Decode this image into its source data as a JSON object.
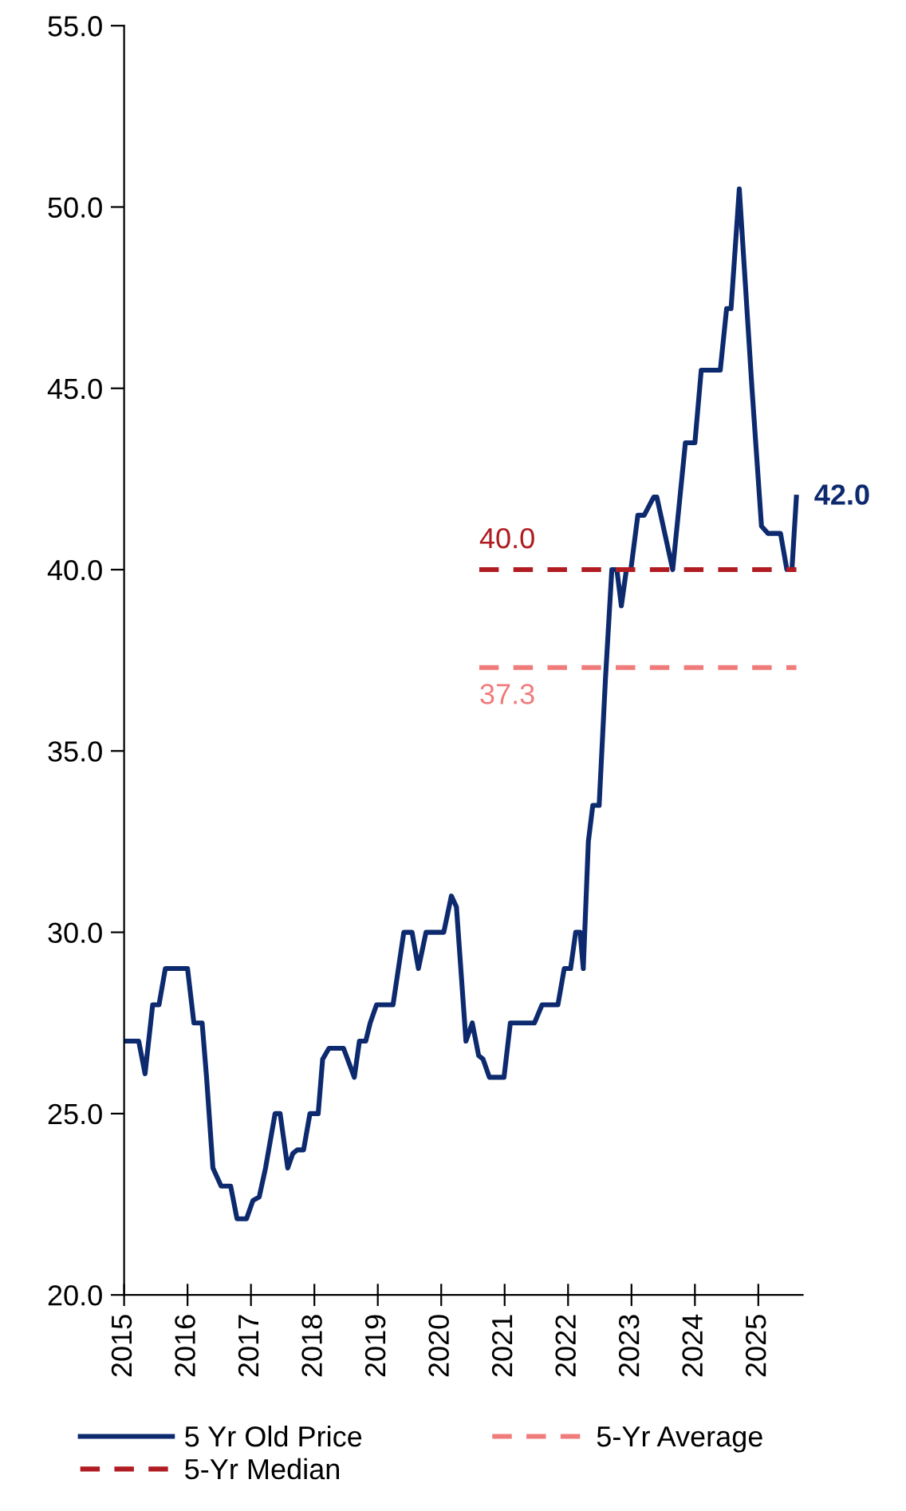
{
  "chart_data": {
    "type": "line",
    "xlim": [
      2015,
      2025.7
    ],
    "xticks": [
      2015,
      2016,
      2017,
      2018,
      2019,
      2020,
      2021,
      2022,
      2023,
      2024,
      2025
    ],
    "ylim": [
      20,
      55
    ],
    "yticks": [
      {
        "value": 20,
        "label": "20.0"
      },
      {
        "value": 25,
        "label": "25.0"
      },
      {
        "value": 30,
        "label": "30.0"
      },
      {
        "value": 35,
        "label": "35.0"
      },
      {
        "value": 40,
        "label": "40.0"
      },
      {
        "value": 45,
        "label": "45.0"
      },
      {
        "value": 50,
        "label": "50.0"
      },
      {
        "value": 55,
        "label": "55.0"
      }
    ],
    "grid": false,
    "legend": "bottom",
    "marker": "none",
    "series": [
      {
        "name": "5 Yr Old Price",
        "color": "#0d2a6e",
        "line_style": "solid",
        "x": [
          2015.0,
          2015.23,
          2015.33,
          2015.45,
          2015.55,
          2015.65,
          2016.0,
          2016.1,
          2016.23,
          2016.3,
          2016.4,
          2016.53,
          2016.68,
          2016.78,
          2016.93,
          2017.03,
          2017.13,
          2017.23,
          2017.38,
          2017.46,
          2017.58,
          2017.66,
          2017.73,
          2017.83,
          2017.93,
          2018.06,
          2018.13,
          2018.23,
          2018.46,
          2018.63,
          2018.71,
          2018.81,
          2018.88,
          2018.98,
          2019.24,
          2019.41,
          2019.54,
          2019.64,
          2019.76,
          2020.04,
          2020.16,
          2020.24,
          2020.39,
          2020.49,
          2020.59,
          2020.66,
          2020.76,
          2020.99,
          2021.09,
          2021.47,
          2021.59,
          2021.84,
          2021.94,
          2022.04,
          2022.12,
          2022.19,
          2022.24,
          2022.32,
          2022.39,
          2022.49,
          2022.59,
          2022.69,
          2022.77,
          2022.84,
          2022.92,
          2022.99,
          2023.1,
          2023.2,
          2023.35,
          2023.4,
          2023.65,
          2023.85,
          2024.0,
          2024.1,
          2024.4,
          2024.5,
          2024.57,
          2024.7,
          2024.9,
          2025.05,
          2025.15,
          2025.35,
          2025.45,
          2025.53,
          2025.6
        ],
        "values": [
          27.0,
          27.0,
          26.1,
          28.0,
          28.0,
          29.0,
          29.0,
          27.5,
          27.5,
          26.0,
          23.5,
          23.0,
          23.0,
          22.1,
          22.1,
          22.6,
          22.7,
          23.5,
          25.0,
          25.0,
          23.5,
          23.9,
          24.0,
          24.0,
          25.0,
          25.0,
          26.5,
          26.8,
          26.8,
          26.0,
          27.0,
          27.0,
          27.5,
          28.0,
          28.0,
          30.0,
          30.0,
          29.0,
          30.0,
          30.0,
          31.0,
          30.7,
          27.0,
          27.5,
          26.6,
          26.5,
          26.0,
          26.0,
          27.5,
          27.5,
          28.0,
          28.0,
          29.0,
          29.0,
          30.0,
          30.0,
          29.0,
          32.5,
          33.5,
          33.5,
          37.0,
          40.0,
          40.0,
          39.0,
          40.0,
          40.0,
          41.5,
          41.5,
          42.0,
          42.0,
          40.0,
          43.5,
          43.5,
          45.5,
          45.5,
          47.2,
          47.2,
          50.5,
          45.0,
          41.2,
          41.0,
          41.0,
          40.0,
          40.0,
          42.0
        ],
        "value_labels": [
          null,
          null,
          null,
          null,
          null,
          null,
          null,
          null,
          null,
          null,
          null,
          null,
          null,
          null,
          null,
          null,
          null,
          null,
          null,
          null,
          null,
          null,
          null,
          null,
          null,
          null,
          null,
          null,
          null,
          null,
          null,
          null,
          null,
          null,
          null,
          null,
          null,
          null,
          null,
          null,
          null,
          null,
          null,
          null,
          null,
          null,
          null,
          null,
          null,
          null,
          null,
          null,
          null,
          null,
          null,
          null,
          null,
          null,
          null,
          null,
          null,
          null,
          null,
          null,
          null,
          null,
          null,
          null,
          null,
          null,
          null,
          null,
          null,
          null,
          null,
          null,
          null,
          null,
          null,
          null,
          null,
          null,
          null,
          null,
          "42.0"
        ]
      },
      {
        "name": "5-Yr Median",
        "color": "#b01c22",
        "line_style": "dashed",
        "x": [
          2020.6,
          2025.6
        ],
        "values": [
          40.0,
          40.0
        ],
        "value_labels": [
          "40.0",
          null
        ]
      },
      {
        "name": "5-Yr Average",
        "color": "#f07b7b",
        "line_style": "dashed",
        "x": [
          2020.6,
          2025.6
        ],
        "values": [
          37.3,
          37.3
        ],
        "value_labels": [
          "37.3",
          null
        ]
      }
    ]
  }
}
